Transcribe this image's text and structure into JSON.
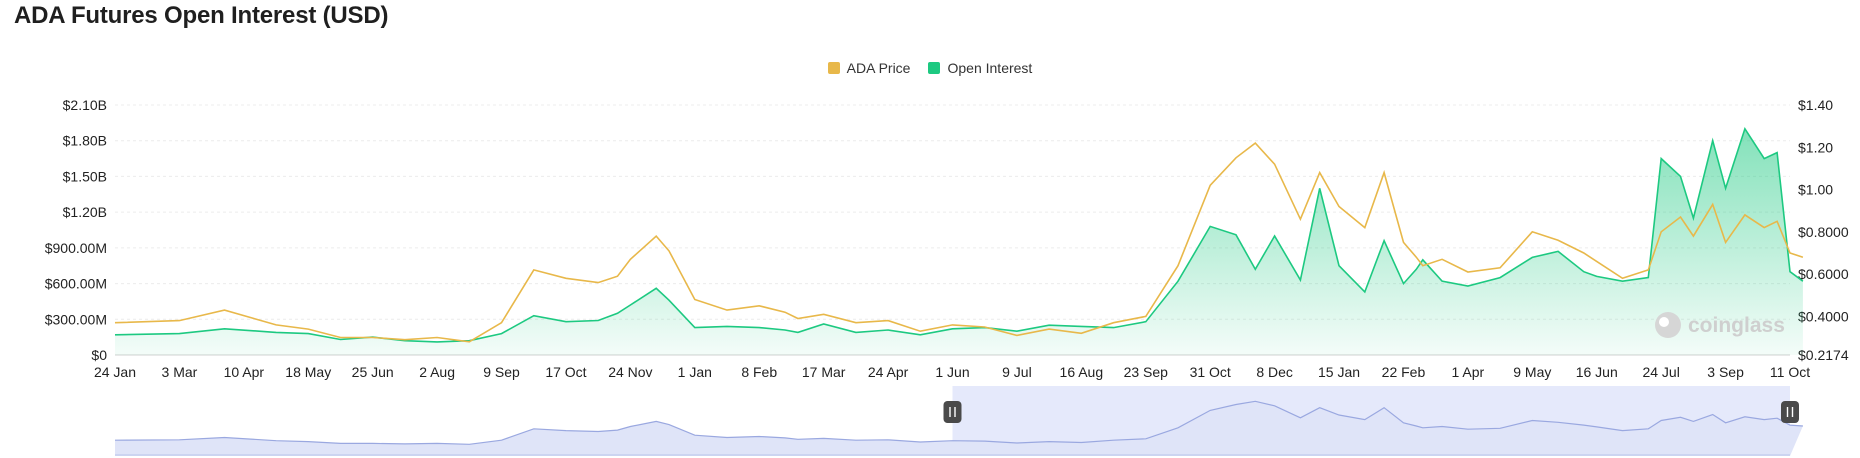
{
  "page": {
    "title": "ADA Futures Open Interest (USD)"
  },
  "colors": {
    "price": "#e8b84a",
    "oi": "#1dc981",
    "navigator": "#9aa8e0",
    "selection": "#e5e9fb"
  },
  "chart_data": {
    "type": "line",
    "title": "ADA Futures Open Interest (USD)",
    "legend": {
      "position": "top-center",
      "entries": [
        "ADA Price",
        "Open Interest"
      ]
    },
    "grid": true,
    "x_ticks": [
      "24 Jan",
      "3 Mar",
      "10 Apr",
      "18 May",
      "25 Jun",
      "2 Aug",
      "9 Sep",
      "17 Oct",
      "24 Nov",
      "1 Jan",
      "8 Feb",
      "17 Mar",
      "24 Apr",
      "1 Jun",
      "9 Jul",
      "16 Aug",
      "23 Sep",
      "31 Oct",
      "8 Dec",
      "15 Jan",
      "22 Feb",
      "1 Apr",
      "9 May",
      "16 Jun",
      "24 Jul",
      "3 Sep",
      "11 Oct"
    ],
    "y_left": {
      "ticks": [
        "$0",
        "$300.00M",
        "$600.00M",
        "$900.00M",
        "$1.20B",
        "$1.50B",
        "$1.80B",
        "$2.10B"
      ],
      "range": [
        0,
        2100000000
      ]
    },
    "y_right": {
      "ticks": [
        "$0.2174",
        "$0.4000",
        "$0.6000",
        "$0.8000",
        "$1.00",
        "$1.20",
        "$1.40"
      ],
      "range": [
        0.2174,
        1.4
      ]
    },
    "series": [
      {
        "name": "ADA Price",
        "axis": "right",
        "x": [
          0,
          1,
          1.7,
          2.5,
          3,
          3.5,
          4,
          4.5,
          5,
          5.5,
          6,
          6.5,
          7,
          7.5,
          7.8,
          8,
          8.4,
          8.6,
          9,
          9.5,
          10,
          10.4,
          10.6,
          11,
          11.5,
          12,
          12.5,
          13,
          13.5,
          14,
          14.5,
          15,
          15.5,
          16,
          16.5,
          17,
          17.4,
          17.7,
          18,
          18.4,
          18.7,
          19,
          19.4,
          19.7,
          20,
          20.2,
          20.3,
          20.6,
          21,
          21.5,
          22,
          22.4,
          22.8,
          23,
          23.4,
          23.8,
          24,
          24.3,
          24.5,
          24.8,
          25,
          25.3,
          25.6,
          25.8,
          26,
          26.2
        ],
        "y": [
          0.37,
          0.38,
          0.43,
          0.36,
          0.34,
          0.3,
          0.3,
          0.29,
          0.3,
          0.28,
          0.37,
          0.62,
          0.58,
          0.56,
          0.59,
          0.67,
          0.78,
          0.71,
          0.48,
          0.43,
          0.45,
          0.42,
          0.39,
          0.41,
          0.37,
          0.38,
          0.33,
          0.36,
          0.35,
          0.31,
          0.34,
          0.32,
          0.37,
          0.4,
          0.64,
          1.02,
          1.15,
          1.22,
          1.12,
          0.86,
          1.08,
          0.92,
          0.82,
          1.08,
          0.75,
          0.68,
          0.64,
          0.67,
          0.61,
          0.63,
          0.8,
          0.76,
          0.7,
          0.66,
          0.58,
          0.62,
          0.8,
          0.87,
          0.78,
          0.93,
          0.75,
          0.88,
          0.82,
          0.85,
          0.7,
          0.68
        ]
      },
      {
        "name": "Open Interest",
        "axis": "left",
        "x": [
          0,
          1,
          1.7,
          2.5,
          3,
          3.5,
          4,
          4.5,
          5,
          5.5,
          6,
          6.5,
          7,
          7.5,
          7.8,
          8,
          8.4,
          8.6,
          9,
          9.5,
          10,
          10.4,
          10.6,
          11,
          11.5,
          12,
          12.5,
          13,
          13.5,
          14,
          14.5,
          15,
          15.5,
          16,
          16.5,
          17,
          17.4,
          17.7,
          18,
          18.4,
          18.7,
          19,
          19.4,
          19.7,
          20,
          20.2,
          20.3,
          20.6,
          21,
          21.5,
          22,
          22.4,
          22.8,
          23,
          23.4,
          23.8,
          24,
          24.3,
          24.5,
          24.8,
          25,
          25.3,
          25.6,
          25.8,
          26,
          26.2
        ],
        "y": [
          170000000,
          180000000,
          220000000,
          190000000,
          180000000,
          130000000,
          150000000,
          120000000,
          110000000,
          120000000,
          180000000,
          330000000,
          280000000,
          290000000,
          350000000,
          420000000,
          560000000,
          460000000,
          230000000,
          240000000,
          230000000,
          210000000,
          190000000,
          260000000,
          190000000,
          210000000,
          170000000,
          220000000,
          230000000,
          200000000,
          250000000,
          240000000,
          230000000,
          280000000,
          620000000,
          1080000000,
          1010000000,
          720000000,
          1000000000,
          630000000,
          1400000000,
          750000000,
          530000000,
          960000000,
          600000000,
          720000000,
          800000000,
          620000000,
          580000000,
          650000000,
          820000000,
          870000000,
          700000000,
          660000000,
          620000000,
          650000000,
          1650000000,
          1500000000,
          1150000000,
          1800000000,
          1400000000,
          1900000000,
          1650000000,
          1700000000,
          700000000,
          620000000
        ]
      }
    ]
  }
}
